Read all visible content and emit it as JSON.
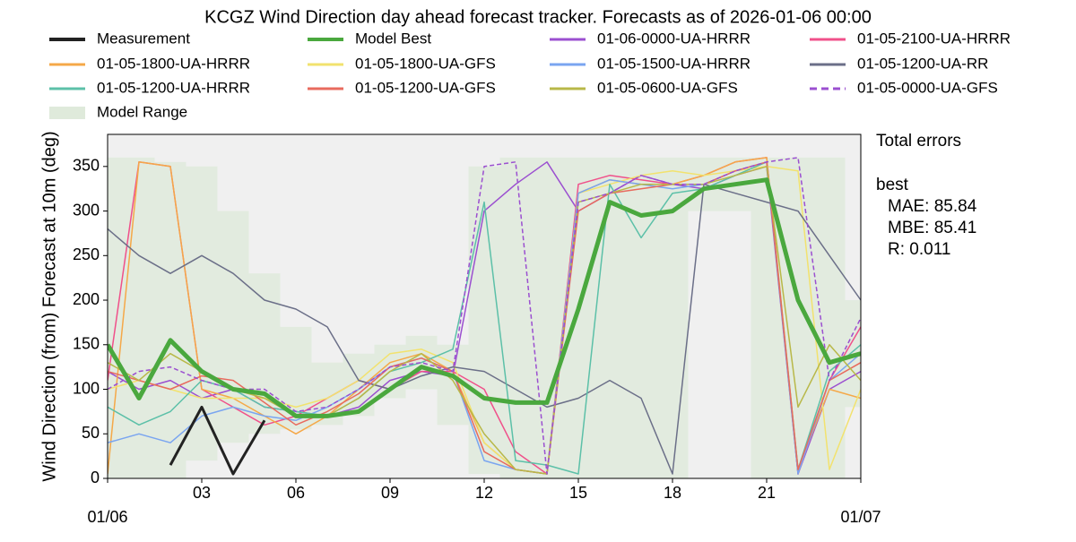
{
  "chart_data": {
    "type": "line",
    "title": "KCGZ Wind Direction day ahead forecast tracker. Forecasts as of 2026-01-06 00:00",
    "y_label": "Wind Direction (from) Forecast at 10m (deg)",
    "x": [
      0,
      1,
      2,
      3,
      4,
      5,
      6,
      7,
      8,
      9,
      10,
      11,
      12,
      13,
      14,
      15,
      16,
      17,
      18,
      19,
      20,
      21,
      22,
      23,
      24
    ],
    "xlim": [
      0,
      24
    ],
    "xticks": [
      {
        "value": 0,
        "label": "01/06"
      },
      {
        "value": 3,
        "label": "03"
      },
      {
        "value": 6,
        "label": "06"
      },
      {
        "value": 9,
        "label": "09"
      },
      {
        "value": 12,
        "label": "12"
      },
      {
        "value": 15,
        "label": "15"
      },
      {
        "value": 18,
        "label": "18"
      },
      {
        "value": 21,
        "label": "21"
      },
      {
        "value": 24,
        "label": "01/07"
      }
    ],
    "ylim": [
      0,
      386
    ],
    "yticks": [
      0,
      50,
      100,
      150,
      200,
      250,
      300,
      350
    ],
    "series": [
      {
        "name": "Measurement",
        "color": "#222222",
        "width": 3,
        "values": [
          null,
          null,
          15,
          80,
          5,
          65,
          null,
          null,
          null,
          null,
          null,
          null,
          null,
          null,
          null,
          null,
          null,
          null,
          null,
          null,
          null,
          null,
          null,
          null,
          null
        ]
      },
      {
        "name": "Model Best",
        "color": "#4aa83e",
        "width": 5,
        "values": [
          150,
          90,
          155,
          120,
          100,
          95,
          70,
          70,
          75,
          100,
          125,
          115,
          90,
          85,
          85,
          190,
          310,
          295,
          300,
          325,
          330,
          335,
          200,
          130,
          140
        ]
      },
      {
        "name": "01-06-0000-UA-HRRR",
        "color": "#9b4fd0",
        "values": [
          120,
          100,
          110,
          90,
          100,
          80,
          75,
          70,
          80,
          110,
          120,
          115,
          300,
          330,
          355,
          300,
          320,
          340,
          330,
          325,
          340,
          350,
          5,
          100,
          120
        ]
      },
      {
        "name": "01-05-2100-UA-HRRR",
        "color": "#f0508a",
        "values": [
          110,
          355,
          350,
          100,
          80,
          60,
          70,
          90,
          110,
          100,
          120,
          120,
          100,
          30,
          5,
          330,
          340,
          335,
          330,
          340,
          355,
          360,
          5,
          110,
          170
        ]
      },
      {
        "name": "01-05-1800-UA-HRRR",
        "color": "#f5a848",
        "values": [
          5,
          355,
          350,
          100,
          90,
          70,
          50,
          70,
          100,
          130,
          140,
          120,
          40,
          10,
          5,
          320,
          335,
          330,
          330,
          340,
          355,
          360,
          10,
          100,
          90
        ]
      },
      {
        "name": "01-05-1800-UA-GFS",
        "color": "#f2e26e",
        "values": [
          100,
          110,
          100,
          90,
          90,
          90,
          80,
          90,
          110,
          140,
          145,
          130,
          40,
          10,
          5,
          320,
          330,
          340,
          345,
          340,
          345,
          350,
          345,
          10,
          100
        ]
      },
      {
        "name": "01-05-1500-UA-HRRR",
        "color": "#7aa5f0",
        "values": [
          40,
          50,
          40,
          70,
          80,
          70,
          65,
          80,
          100,
          125,
          135,
          120,
          20,
          10,
          5,
          320,
          335,
          330,
          325,
          330,
          345,
          355,
          5,
          110,
          140
        ]
      },
      {
        "name": "01-05-1200-UA-RR",
        "color": "#6b6f88",
        "values": [
          280,
          250,
          230,
          250,
          230,
          200,
          190,
          170,
          110,
          100,
          115,
          125,
          120,
          100,
          80,
          90,
          110,
          90,
          5,
          330,
          320,
          310,
          300,
          250,
          200
        ]
      },
      {
        "name": "01-05-1200-UA-HRRR",
        "color": "#5cc0a8",
        "values": [
          80,
          60,
          75,
          110,
          100,
          80,
          75,
          70,
          90,
          120,
          130,
          145,
          310,
          20,
          15,
          5,
          330,
          270,
          320,
          325,
          340,
          355,
          10,
          120,
          150
        ]
      },
      {
        "name": "01-05-1200-UA-GFS",
        "color": "#e86a5e",
        "values": [
          120,
          110,
          100,
          115,
          110,
          85,
          60,
          75,
          95,
          125,
          135,
          120,
          30,
          10,
          5,
          300,
          320,
          325,
          330,
          330,
          345,
          355,
          10,
          110,
          130
        ]
      },
      {
        "name": "01-05-0600-UA-GFS",
        "color": "#b8b848",
        "values": [
          130,
          110,
          140,
          120,
          100,
          90,
          70,
          70,
          90,
          120,
          140,
          110,
          50,
          10,
          5,
          310,
          320,
          330,
          330,
          330,
          340,
          350,
          80,
          150,
          110
        ]
      },
      {
        "name": "01-05-0000-UA-GFS",
        "color": "#9b4fd0",
        "dash": true,
        "values": [
          100,
          120,
          125,
          110,
          100,
          100,
          75,
          80,
          100,
          125,
          130,
          120,
          350,
          355,
          5,
          310,
          320,
          340,
          330,
          330,
          345,
          355,
          360,
          110,
          180
        ]
      }
    ],
    "model_range": {
      "name": "Model Range",
      "color": "#dfeadb",
      "low": [
        0,
        0,
        0,
        20,
        40,
        50,
        55,
        60,
        70,
        90,
        100,
        60,
        5,
        0,
        0,
        0,
        0,
        0,
        0,
        300,
        300,
        0,
        0,
        0,
        80
      ],
      "high": [
        360,
        360,
        355,
        350,
        300,
        230,
        170,
        130,
        140,
        150,
        160,
        150,
        350,
        360,
        360,
        360,
        360,
        360,
        360,
        360,
        360,
        360,
        360,
        360,
        200
      ]
    },
    "annotations": [
      "Total errors",
      "best",
      "MAE: 85.84",
      "MBE: 85.41",
      "R: 0.011"
    ]
  }
}
